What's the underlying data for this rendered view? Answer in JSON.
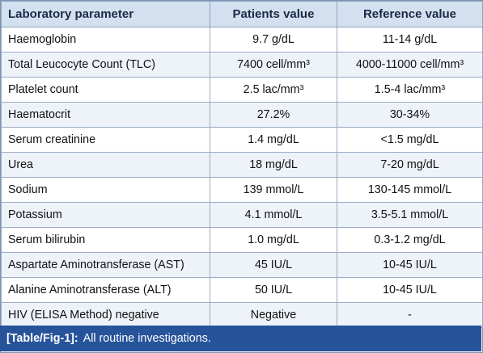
{
  "table": {
    "headers": [
      "Laboratory parameter",
      "Patients value",
      "Reference value"
    ],
    "rows": [
      [
        "Haemoglobin",
        "9.7 g/dL",
        "11-14 g/dL"
      ],
      [
        "Total Leucocyte Count (TLC)",
        "7400 cell/mm³",
        "4000-11000 cell/mm³"
      ],
      [
        "Platelet count",
        "2.5 lac/mm³",
        "1.5-4 lac/mm³"
      ],
      [
        "Haematocrit",
        "27.2%",
        "30-34%"
      ],
      [
        "Serum creatinine",
        "1.4 mg/dL",
        "<1.5 mg/dL"
      ],
      [
        "Urea",
        "18 mg/dL",
        "7-20 mg/dL"
      ],
      [
        "Sodium",
        "139 mmol/L",
        "130-145 mmol/L"
      ],
      [
        "Potassium",
        "4.1 mmol/L",
        "3.5-5.1 mmol/L"
      ],
      [
        "Serum bilirubin",
        "1.0 mg/dL",
        "0.3-1.2 mg/dL"
      ],
      [
        "Aspartate Aminotransferase (AST)",
        "45 IU/L",
        "10-45 IU/L"
      ],
      [
        "Alanine Aminotransferase (ALT)",
        "50 IU/L",
        "10-45 IU/L"
      ],
      [
        "HIV (ELISA Method) negative",
        "Negative",
        "-"
      ]
    ]
  },
  "caption": {
    "label": "[Table/Fig-1]:",
    "text": "All routine investigations."
  }
}
